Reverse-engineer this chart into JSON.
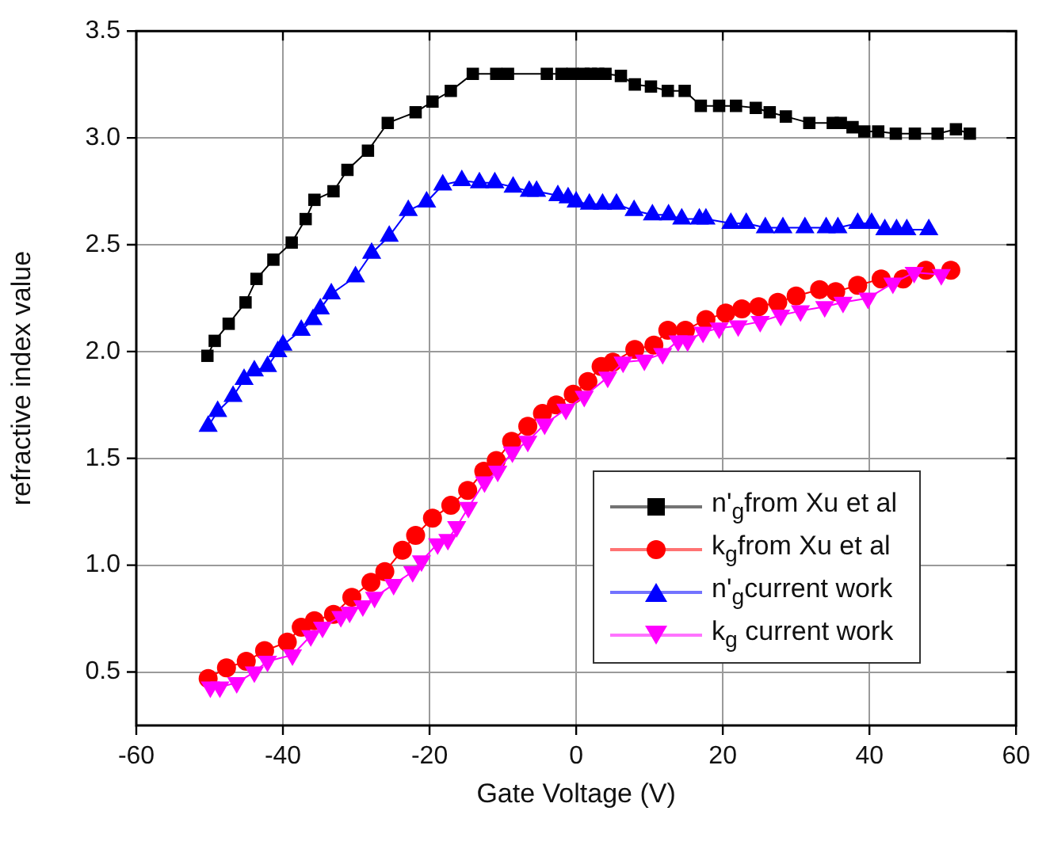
{
  "chart_data": {
    "type": "line",
    "xlabel": "Gate Voltage (V)",
    "ylabel": "refractive index value",
    "xlim": [
      -60,
      60
    ],
    "xticks": [
      -60,
      -40,
      -20,
      0,
      20,
      40,
      60
    ],
    "ylim": [
      0.25,
      3.5
    ],
    "yticks": [
      {
        "value": 0.5,
        "label": "0.5"
      },
      {
        "value": 1,
        "label": "1.0"
      },
      {
        "value": 1.5,
        "label": "1.5"
      },
      {
        "value": 2,
        "label": "2.0"
      },
      {
        "value": 2.5,
        "label": "2.5"
      },
      {
        "value": 3,
        "label": "3.0"
      },
      {
        "value": 3.5,
        "label": "3.5"
      }
    ],
    "grid": true,
    "legend": "bottom right",
    "line_style": "solid",
    "series": [
      {
        "name": "n'$_{g}$from Xu et al",
        "color": "#000000",
        "marker": "square",
        "x": [
          -50.3,
          -49.3,
          -47.4,
          -45.1,
          -43.6,
          -41.3,
          -38.8,
          -36.9,
          -35.7,
          -33.1,
          -31.2,
          -28.4,
          -25.7,
          -21.9,
          -19.6,
          -17.1,
          -14.1,
          -10.9,
          -9.3,
          -4,
          -2,
          -0.5,
          1,
          2,
          3,
          4,
          6.1,
          8,
          10.2,
          12.5,
          14.8,
          17,
          19.5,
          21.8,
          24.5,
          26.4,
          28.6,
          31.8,
          35,
          36.1,
          37.7,
          39.3,
          41.2,
          43.6,
          46.2,
          49.3,
          51.8,
          53.7
        ],
        "values": [
          1.98,
          2.05,
          2.13,
          2.23,
          2.34,
          2.43,
          2.51,
          2.62,
          2.71,
          2.75,
          2.85,
          2.94,
          3.07,
          3.12,
          3.17,
          3.22,
          3.3,
          3.3,
          3.3,
          3.3,
          3.3,
          3.3,
          3.3,
          3.3,
          3.3,
          3.3,
          3.29,
          3.25,
          3.24,
          3.22,
          3.22,
          3.15,
          3.15,
          3.15,
          3.14,
          3.12,
          3.1,
          3.07,
          3.07,
          3.07,
          3.05,
          3.03,
          3.03,
          3.02,
          3.02,
          3.02,
          3.04,
          3.02
        ]
      },
      {
        "name": "k$_{g}$from Xu et al",
        "color": "#ff0000",
        "marker": "circle",
        "x": [
          -50.2,
          -47.7,
          -45,
          -42.5,
          -39.4,
          -37.5,
          -35.7,
          -33.1,
          -30.6,
          -28,
          -26.1,
          -23.7,
          -21.9,
          -19.6,
          -17.1,
          -14.8,
          -12.6,
          -10.9,
          -8.8,
          -6.6,
          -4.6,
          -2.7,
          -0.4,
          1.6,
          3.4,
          5,
          8,
          10.6,
          12.5,
          14.9,
          17.7,
          20.4,
          22.6,
          24.9,
          27.5,
          30,
          33.2,
          35.4,
          38.4,
          41.6,
          44.6,
          47.7,
          51.1
        ],
        "values": [
          0.47,
          0.52,
          0.55,
          0.6,
          0.64,
          0.71,
          0.74,
          0.77,
          0.85,
          0.92,
          0.97,
          1.07,
          1.14,
          1.22,
          1.28,
          1.35,
          1.44,
          1.49,
          1.58,
          1.65,
          1.71,
          1.75,
          1.8,
          1.86,
          1.93,
          1.95,
          2.01,
          2.03,
          2.1,
          2.1,
          2.15,
          2.18,
          2.2,
          2.21,
          2.23,
          2.26,
          2.29,
          2.28,
          2.31,
          2.34,
          2.34,
          2.38,
          2.38
        ]
      },
      {
        "name": "n'$_{g}$current work",
        "color": "#0000ff",
        "marker": "triangle",
        "x": [
          -50.2,
          -48.9,
          -46.8,
          -45.3,
          -43.9,
          -42.1,
          -40.7,
          -40,
          -37.5,
          -35.9,
          -34.9,
          -33.4,
          -30.1,
          -27.9,
          -25.5,
          -22.9,
          -20.4,
          -18.2,
          -15.6,
          -13.2,
          -11.1,
          -8.6,
          -6.4,
          -5.4,
          -2.5,
          -1.1,
          0,
          1.8,
          3.6,
          5.5,
          7.9,
          10.4,
          12.6,
          14.4,
          16.8,
          17.7,
          21.1,
          23.2,
          25.8,
          28.2,
          31.2,
          34.1,
          35.7,
          38.4,
          40.3,
          42.1,
          43.7,
          45.1,
          48.1
        ],
        "values": [
          1.65,
          1.72,
          1.79,
          1.87,
          1.91,
          1.93,
          2,
          2.03,
          2.1,
          2.15,
          2.2,
          2.27,
          2.35,
          2.46,
          2.54,
          2.66,
          2.7,
          2.78,
          2.8,
          2.79,
          2.79,
          2.77,
          2.75,
          2.75,
          2.73,
          2.72,
          2.7,
          2.69,
          2.69,
          2.69,
          2.66,
          2.64,
          2.64,
          2.62,
          2.62,
          2.62,
          2.6,
          2.6,
          2.58,
          2.58,
          2.58,
          2.58,
          2.58,
          2.6,
          2.6,
          2.57,
          2.57,
          2.57,
          2.57
        ]
      },
      {
        "name": "k$_{g}$ current work",
        "color": "#ff00ff",
        "marker": "triangle_down",
        "x": [
          -49.9,
          -48.6,
          -46.3,
          -43.9,
          -42.1,
          -38.7,
          -36.2,
          -34.6,
          -32.1,
          -30.9,
          -29.1,
          -27.5,
          -24.9,
          -22.3,
          -21.1,
          -18.9,
          -17.5,
          -16.3,
          -14.7,
          -12.5,
          -10.7,
          -8.7,
          -6.6,
          -4.3,
          -1.4,
          1.1,
          4.3,
          6.4,
          9.3,
          11.8,
          13.9,
          15.2,
          17.3,
          19.5,
          22.1,
          25.1,
          27.9,
          30.6,
          33.9,
          36.4,
          39.8,
          43.2,
          46.1,
          49.8
        ],
        "values": [
          0.43,
          0.43,
          0.45,
          0.5,
          0.55,
          0.58,
          0.67,
          0.71,
          0.76,
          0.78,
          0.81,
          0.85,
          0.91,
          0.97,
          1.02,
          1.1,
          1.12,
          1.18,
          1.27,
          1.39,
          1.44,
          1.53,
          1.58,
          1.66,
          1.73,
          1.79,
          1.88,
          1.95,
          1.96,
          1.99,
          2.05,
          2.05,
          2.09,
          2.11,
          2.12,
          2.14,
          2.17,
          2.19,
          2.21,
          2.23,
          2.25,
          2.32,
          2.37,
          2.36
        ]
      }
    ]
  }
}
